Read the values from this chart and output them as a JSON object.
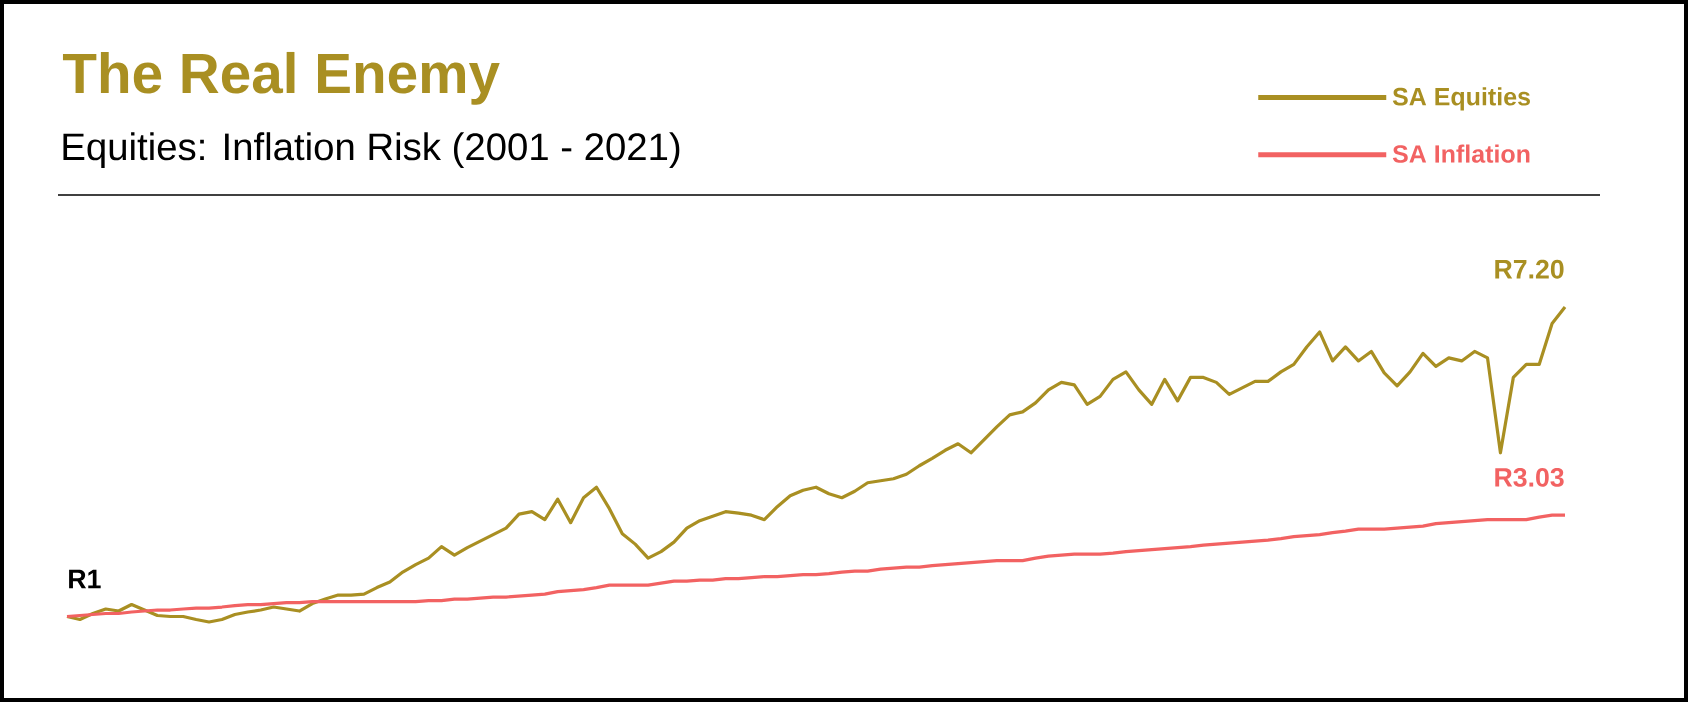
{
  "chart_data": {
    "type": "line",
    "title": "The Real Enemy",
    "subtitle": "Equities: Inflation Risk (2001 - 2021)",
    "categories": [
      null,
      null,
      null,
      null,
      null,
      null,
      null,
      null,
      null,
      null,
      null,
      null,
      null,
      null,
      null,
      null,
      null,
      null,
      null,
      null,
      null,
      null,
      null,
      null,
      null,
      null,
      null,
      null,
      null,
      null,
      null,
      null,
      null,
      null,
      null,
      null,
      null,
      null,
      null,
      null,
      null,
      null,
      null,
      null,
      null,
      null,
      null,
      null,
      null,
      null,
      null,
      null,
      null,
      null,
      null,
      null,
      null,
      null,
      null,
      null,
      null,
      null,
      null,
      null,
      null,
      null,
      null,
      null,
      null,
      null,
      null,
      null,
      null,
      null,
      null,
      null,
      null,
      null,
      null,
      null,
      null,
      null,
      null,
      null,
      null,
      null,
      null,
      null,
      null,
      null,
      null,
      null,
      null,
      null,
      null,
      null,
      null,
      null,
      null,
      null,
      null,
      null,
      null,
      null,
      null,
      null,
      null,
      null,
      null,
      null,
      null,
      null,
      null,
      null,
      null,
      null,
      null
    ],
    "series": [
      {
        "name": "SA Equities",
        "color": "#a98f22",
        "value_labels": [
          "R1",
          null,
          null,
          null,
          null,
          null,
          null,
          null,
          null,
          null,
          null,
          null,
          null,
          null,
          null,
          null,
          null,
          null,
          null,
          null,
          null,
          null,
          null,
          null,
          null,
          null,
          null,
          null,
          null,
          null,
          null,
          null,
          null,
          null,
          null,
          null,
          null,
          null,
          null,
          null,
          null,
          null,
          null,
          null,
          null,
          null,
          null,
          null,
          null,
          null,
          null,
          null,
          null,
          null,
          null,
          null,
          null,
          null,
          null,
          null,
          null,
          null,
          null,
          null,
          null,
          null,
          null,
          null,
          null,
          null,
          null,
          null,
          null,
          null,
          null,
          null,
          null,
          null,
          null,
          null,
          null,
          null,
          null,
          null,
          null,
          null,
          null,
          null,
          null,
          null,
          null,
          null,
          null,
          null,
          null,
          null,
          null,
          null,
          null,
          null,
          null,
          null,
          null,
          null,
          null,
          null,
          null,
          null,
          null,
          null,
          null,
          null,
          null,
          null,
          null,
          null,
          "R7.20"
        ],
        "values": [
          1.0,
          0.94,
          1.06,
          1.15,
          1.11,
          1.24,
          1.13,
          1.02,
          1.0,
          1.0,
          0.94,
          0.89,
          0.94,
          1.04,
          1.09,
          1.13,
          1.19,
          1.15,
          1.11,
          1.26,
          1.35,
          1.43,
          1.43,
          1.45,
          1.58,
          1.69,
          1.89,
          2.04,
          2.17,
          2.4,
          2.23,
          2.38,
          2.51,
          2.64,
          2.77,
          3.05,
          3.1,
          2.94,
          3.35,
          2.88,
          3.38,
          3.59,
          3.16,
          2.66,
          2.45,
          2.17,
          2.3,
          2.49,
          2.77,
          2.92,
          3.01,
          3.1,
          3.07,
          3.03,
          2.94,
          3.2,
          3.42,
          3.53,
          3.59,
          3.46,
          3.38,
          3.51,
          3.68,
          3.72,
          3.76,
          3.85,
          4.02,
          4.17,
          4.33,
          4.46,
          4.28,
          4.54,
          4.8,
          5.04,
          5.1,
          5.28,
          5.54,
          5.69,
          5.64,
          5.25,
          5.41,
          5.75,
          5.9,
          5.54,
          5.25,
          5.75,
          5.32,
          5.79,
          5.79,
          5.69,
          5.45,
          5.58,
          5.71,
          5.71,
          5.9,
          6.05,
          6.4,
          6.7,
          6.12,
          6.4,
          6.12,
          6.31,
          5.88,
          5.62,
          5.9,
          6.27,
          6.01,
          6.18,
          6.12,
          6.31,
          6.18,
          4.28,
          5.79,
          6.05,
          6.05,
          6.87,
          7.2
        ]
      },
      {
        "name": "SA Inflation",
        "color": "#f26262",
        "value_labels": [
          null,
          null,
          null,
          null,
          null,
          null,
          null,
          null,
          null,
          null,
          null,
          null,
          null,
          null,
          null,
          null,
          null,
          null,
          null,
          null,
          null,
          null,
          null,
          null,
          null,
          null,
          null,
          null,
          null,
          null,
          null,
          null,
          null,
          null,
          null,
          null,
          null,
          null,
          null,
          null,
          null,
          null,
          null,
          null,
          null,
          null,
          null,
          null,
          null,
          null,
          null,
          null,
          null,
          null,
          null,
          null,
          null,
          null,
          null,
          null,
          null,
          null,
          null,
          null,
          null,
          null,
          null,
          null,
          null,
          null,
          null,
          null,
          null,
          null,
          null,
          null,
          null,
          null,
          null,
          null,
          null,
          null,
          null,
          null,
          null,
          null,
          null,
          null,
          null,
          null,
          null,
          null,
          null,
          null,
          null,
          null,
          null,
          null,
          null,
          null,
          null,
          null,
          null,
          null,
          null,
          null,
          null,
          null,
          null,
          null,
          null,
          null,
          null,
          null,
          null,
          null,
          "R3.03"
        ],
        "values": [
          1.0,
          1.02,
          1.04,
          1.06,
          1.06,
          1.09,
          1.11,
          1.13,
          1.13,
          1.15,
          1.17,
          1.17,
          1.19,
          1.22,
          1.24,
          1.24,
          1.26,
          1.28,
          1.28,
          1.3,
          1.3,
          1.3,
          1.3,
          1.3,
          1.3,
          1.3,
          1.3,
          1.3,
          1.32,
          1.32,
          1.35,
          1.35,
          1.37,
          1.39,
          1.39,
          1.41,
          1.43,
          1.45,
          1.5,
          1.52,
          1.54,
          1.58,
          1.63,
          1.63,
          1.63,
          1.63,
          1.67,
          1.71,
          1.71,
          1.73,
          1.73,
          1.76,
          1.76,
          1.78,
          1.8,
          1.8,
          1.82,
          1.84,
          1.84,
          1.86,
          1.89,
          1.91,
          1.91,
          1.95,
          1.97,
          1.99,
          1.99,
          2.02,
          2.04,
          2.06,
          2.08,
          2.1,
          2.12,
          2.12,
          2.12,
          2.17,
          2.21,
          2.23,
          2.25,
          2.25,
          2.25,
          2.27,
          2.3,
          2.32,
          2.34,
          2.36,
          2.38,
          2.4,
          2.43,
          2.45,
          2.47,
          2.49,
          2.51,
          2.53,
          2.56,
          2.6,
          2.62,
          2.64,
          2.68,
          2.71,
          2.75,
          2.75,
          2.75,
          2.77,
          2.79,
          2.81,
          2.86,
          2.88,
          2.9,
          2.92,
          2.94,
          2.94,
          2.94,
          2.94,
          2.99,
          3.03,
          3.03
        ]
      }
    ],
    "tick_labels": false,
    "legend": "top right",
    "marker": "none",
    "line_style": "solid"
  }
}
